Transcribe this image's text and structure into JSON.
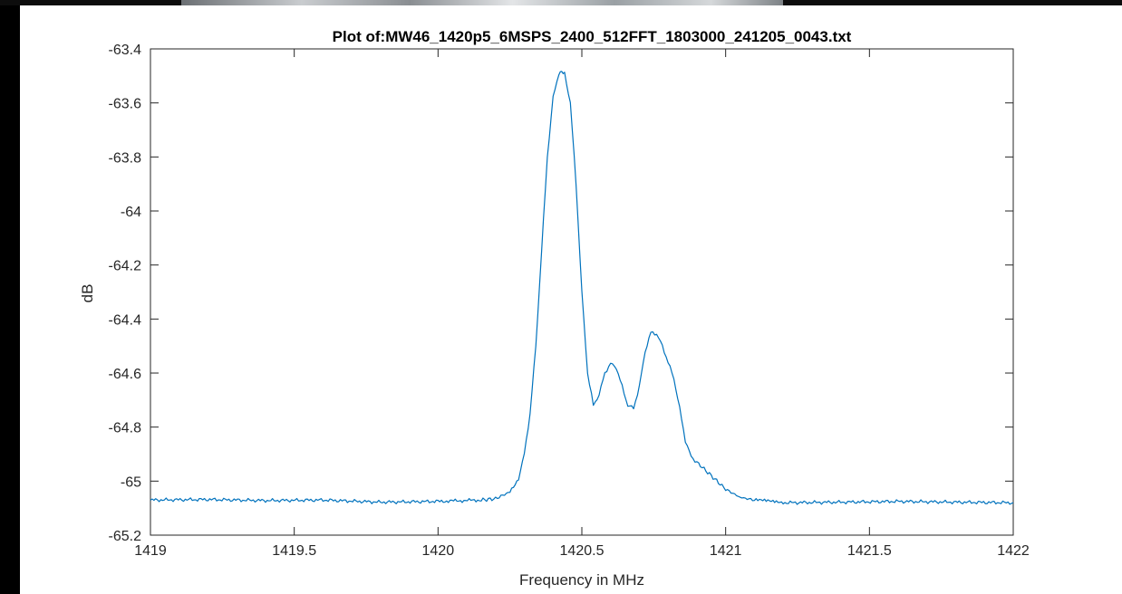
{
  "window": {
    "background": "#000000",
    "figure_background": "#ffffff"
  },
  "chart_data": {
    "type": "line",
    "title": "Plot of:MW46_1420p5_6MSPS_2400_512FFT_1803000_241205_0043.txt",
    "xlabel": "Frequency in MHz",
    "ylabel": "dB",
    "xlim": [
      1419,
      1422
    ],
    "ylim": [
      -65.2,
      -63.4
    ],
    "xticks": [
      1419,
      1419.5,
      1420,
      1420.5,
      1421,
      1421.5,
      1422
    ],
    "xtick_labels": [
      "1419",
      "1419.5",
      "1420",
      "1420.5",
      "1421",
      "1421.5",
      "1422"
    ],
    "yticks": [
      -63.4,
      -63.6,
      -63.8,
      -64,
      -64.2,
      -64.4,
      -64.6,
      -64.8,
      -65,
      -65.2
    ],
    "ytick_labels": [
      "-63.4",
      "-63.6",
      "-63.8",
      "-64",
      "-64.2",
      "-64.4",
      "-64.6",
      "-64.8",
      "-65",
      "-65.2"
    ],
    "grid": false,
    "box": true,
    "series": [
      {
        "color": "#0072BD",
        "x": [
          1419.0,
          1419.2,
          1419.4,
          1419.6,
          1419.8,
          1420.0,
          1420.15,
          1420.2,
          1420.25,
          1420.28,
          1420.3,
          1420.32,
          1420.34,
          1420.36,
          1420.38,
          1420.4,
          1420.42,
          1420.43,
          1420.44,
          1420.46,
          1420.48,
          1420.5,
          1420.52,
          1420.54,
          1420.56,
          1420.58,
          1420.6,
          1420.62,
          1420.64,
          1420.66,
          1420.68,
          1420.7,
          1420.72,
          1420.74,
          1420.76,
          1420.78,
          1420.8,
          1420.82,
          1420.84,
          1420.86,
          1420.88,
          1420.9,
          1420.95,
          1421.0,
          1421.05,
          1421.1,
          1421.2,
          1421.4,
          1421.6,
          1421.8,
          1422.0
        ],
        "y": [
          -65.07,
          -65.068,
          -65.072,
          -65.07,
          -65.078,
          -65.075,
          -65.07,
          -65.065,
          -65.04,
          -64.99,
          -64.9,
          -64.75,
          -64.5,
          -64.15,
          -63.8,
          -63.58,
          -63.49,
          -63.485,
          -63.49,
          -63.6,
          -63.9,
          -64.3,
          -64.6,
          -64.72,
          -64.68,
          -64.6,
          -64.565,
          -64.58,
          -64.65,
          -64.72,
          -64.73,
          -64.65,
          -64.52,
          -64.45,
          -64.455,
          -64.5,
          -64.56,
          -64.62,
          -64.73,
          -64.85,
          -64.91,
          -64.93,
          -64.98,
          -65.03,
          -65.06,
          -65.07,
          -65.08,
          -65.078,
          -65.075,
          -65.078,
          -65.08
        ]
      }
    ]
  }
}
